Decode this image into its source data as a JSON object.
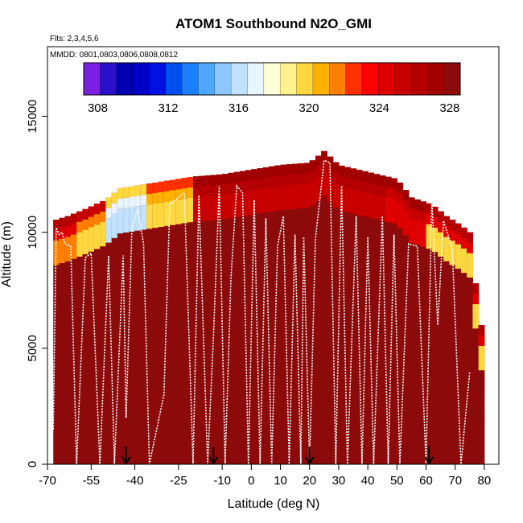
{
  "chart_data": {
    "type": "heatmap",
    "title": "ATOM1 Southbound N2O_GMI",
    "notes": {
      "flights": "Flts: 2,3,4,5,6",
      "dates": "MMDD: 0801,0803,0806,0808,0812"
    },
    "xlabel": "Latitude (deg N)",
    "ylabel": "Altitude (m)",
    "xlim": [
      -70,
      85
    ],
    "ylim": [
      0,
      18000
    ],
    "x_ticks": [
      -70,
      -55,
      -40,
      -25,
      -10,
      0,
      10,
      20,
      30,
      40,
      50,
      60,
      70,
      80
    ],
    "y_ticks": [
      0,
      5000,
      10000,
      15000
    ],
    "colorbar": {
      "min": 307.2,
      "max": 328.6,
      "ticks": [
        308,
        312,
        316,
        320,
        324,
        328
      ],
      "colors": [
        "#7b1fe0",
        "#2a10c8",
        "#0000b0",
        "#0000c8",
        "#0010e0",
        "#0050f0",
        "#1a80ff",
        "#4fa8ff",
        "#8cc8ff",
        "#c0e2ff",
        "#e8f4ff",
        "#ffffd8",
        "#fff090",
        "#ffd840",
        "#ffb000",
        "#ff8000",
        "#ff3000",
        "#ff0000",
        "#e00000",
        "#c80000",
        "#b40000",
        "#a00000",
        "#8c0a0a"
      ]
    },
    "vertical_markers_lat": [
      -43,
      -13,
      20,
      61
    ],
    "field": {
      "background_value": 327.8,
      "top_altitude_profile": [
        [
          -68,
          10500
        ],
        [
          -63,
          10700
        ],
        [
          -57,
          11000
        ],
        [
          -50,
          11400
        ],
        [
          -45,
          11900
        ],
        [
          -30,
          12200
        ],
        [
          -20,
          12400
        ],
        [
          -10,
          12500
        ],
        [
          0,
          12700
        ],
        [
          10,
          12900
        ],
        [
          20,
          13000
        ],
        [
          25,
          13500
        ],
        [
          30,
          12900
        ],
        [
          40,
          12600
        ],
        [
          50,
          12300
        ],
        [
          55,
          11500
        ],
        [
          62,
          11200
        ],
        [
          67,
          10700
        ],
        [
          72,
          10300
        ],
        [
          75,
          10000
        ],
        [
          77,
          7800
        ],
        [
          79,
          6000
        ],
        [
          79,
          0
        ]
      ],
      "upper_layer_values": [
        {
          "lat_range": [
            -68,
            -60
          ],
          "values": [
            326,
            324,
            322
          ]
        },
        {
          "lat_range": [
            -60,
            -50
          ],
          "values": [
            325,
            322,
            320
          ]
        },
        {
          "lat_range": [
            -50,
            -37
          ],
          "values": [
            320,
            317,
            316
          ]
        },
        {
          "lat_range": [
            -37,
            -20
          ],
          "values": [
            323,
            321,
            320
          ]
        },
        {
          "lat_range": [
            -20,
            20
          ],
          "values": [
            327,
            326,
            325
          ]
        },
        {
          "lat_range": [
            20,
            45
          ],
          "values": [
            327,
            326,
            325
          ]
        },
        {
          "lat_range": [
            45,
            60
          ],
          "values": [
            327,
            325,
            324
          ]
        },
        {
          "lat_range": [
            60,
            79
          ],
          "values": [
            326,
            324,
            320
          ]
        }
      ]
    },
    "flight_track": [
      [
        -68,
        1500
      ],
      [
        -67,
        10200
      ],
      [
        -66,
        9900
      ],
      [
        -65,
        10000
      ],
      [
        -64,
        9500
      ],
      [
        -62,
        9400
      ],
      [
        -60,
        0
      ],
      [
        -57,
        8900
      ],
      [
        -55,
        9100
      ],
      [
        -52,
        0
      ],
      [
        -49,
        9000
      ],
      [
        -47,
        0
      ],
      [
        -44,
        9000
      ],
      [
        -43,
        2000
      ],
      [
        -41,
        10200
      ],
      [
        -39,
        11000
      ],
      [
        -37,
        9500
      ],
      [
        -35,
        0
      ],
      [
        -30,
        3000
      ],
      [
        -28,
        11200
      ],
      [
        -23,
        11700
      ],
      [
        -20,
        0
      ],
      [
        -18,
        11600
      ],
      [
        -15,
        0
      ],
      [
        -13,
        5500
      ],
      [
        -11,
        12000
      ],
      [
        -9,
        0
      ],
      [
        -7,
        8000
      ],
      [
        -5,
        12000
      ],
      [
        -3,
        11700
      ],
      [
        -1,
        0
      ],
      [
        1,
        11400
      ],
      [
        3,
        0
      ],
      [
        5,
        10600
      ],
      [
        7,
        0
      ],
      [
        9,
        9400
      ],
      [
        11,
        10700
      ],
      [
        13,
        0
      ],
      [
        15,
        9900
      ],
      [
        17,
        0
      ],
      [
        18,
        9800
      ],
      [
        20,
        0
      ],
      [
        22,
        9700
      ],
      [
        25,
        13100
      ],
      [
        27,
        13000
      ],
      [
        29,
        0
      ],
      [
        31,
        12000
      ],
      [
        33,
        0
      ],
      [
        36,
        10700
      ],
      [
        38,
        0
      ],
      [
        40,
        9800
      ],
      [
        42,
        0
      ],
      [
        45,
        10700
      ],
      [
        47,
        0
      ],
      [
        49,
        9900
      ],
      [
        51,
        0
      ],
      [
        54,
        9500
      ],
      [
        57,
        9400
      ],
      [
        60,
        0
      ],
      [
        62,
        11400
      ],
      [
        64,
        6000
      ],
      [
        66,
        10500
      ],
      [
        69,
        9300
      ],
      [
        72,
        0
      ],
      [
        75,
        4000
      ]
    ]
  }
}
